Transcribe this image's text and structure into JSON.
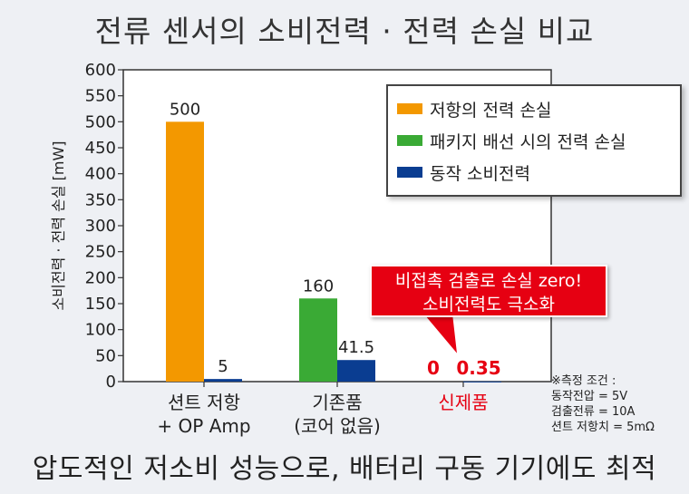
{
  "title": "전류 센서의 소비전력 · 전력 손실 비교",
  "footer": "압도적인 저소비 성능으로, 배터리 구동 기기에도 최적",
  "colors": {
    "orange": "#f39800",
    "green": "#3aaa35",
    "blue": "#0a3d91",
    "red": "#e60012"
  },
  "callout": {
    "line1": "비접촉 검출로 손실 zero!",
    "line2": "소비전력도 극소화"
  },
  "notes": {
    "header": "※측정 조건 :",
    "lines": [
      "동작전압 = 5V",
      "검출전류 = 10A",
      "션트 저항치 = 5mΩ"
    ]
  },
  "chart_data": {
    "type": "bar",
    "ylabel": "소비전력 · 전력 손실 [mW]",
    "ylim": [
      0,
      600
    ],
    "yticks": [
      0,
      50,
      100,
      150,
      200,
      250,
      300,
      350,
      400,
      450,
      500,
      550,
      600
    ],
    "grid": false,
    "legend_position": "top-right",
    "categories": [
      {
        "line1": "션트 저항",
        "line2": "+ OP Amp",
        "highlight": false
      },
      {
        "line1": "기존품",
        "line2": "(코어 없음)",
        "highlight": false
      },
      {
        "line1": "신제품",
        "line2": "",
        "highlight": true
      }
    ],
    "series": [
      {
        "name": "저항의 전력 손실",
        "color": "#f39800",
        "values": [
          500,
          null,
          null
        ],
        "labels": [
          "500",
          "",
          ""
        ]
      },
      {
        "name": "패키지 배선 시의 전력 손실",
        "color": "#3aaa35",
        "values": [
          null,
          160,
          0
        ],
        "labels": [
          "",
          "160",
          "0"
        ]
      },
      {
        "name": "동작 소비전력",
        "color": "#0a3d91",
        "values": [
          5,
          41.5,
          0.35
        ],
        "labels": [
          "5",
          "41.5",
          "0.35"
        ]
      }
    ]
  }
}
